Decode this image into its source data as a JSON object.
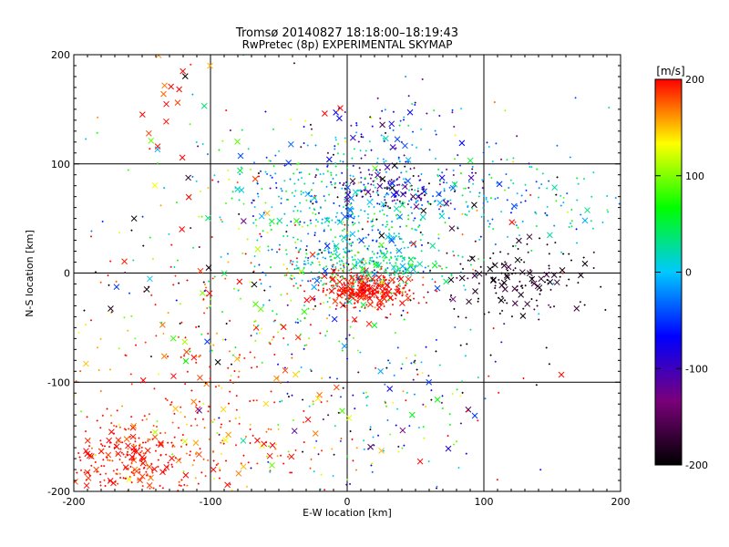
{
  "chart_data": {
    "type": "scatter",
    "title": "Tromsø 20140827 18:18:00–18:19:43",
    "subtitle": "RwPretec (8p) EXPERIMENTAL SKYMAP",
    "xlabel": "E-W location [km]",
    "ylabel": "N-S location [km]",
    "xlim": [
      -200,
      200
    ],
    "ylim": [
      -200,
      200
    ],
    "x_ticks": [
      -200,
      -100,
      0,
      100,
      200
    ],
    "y_ticks": [
      -200,
      -100,
      0,
      100,
      200
    ],
    "grid": true,
    "colorbar": {
      "unit": "[m/s]",
      "range": [
        -200,
        200
      ],
      "ticks": [
        200,
        100,
        0,
        -100,
        -200
      ],
      "colormap": [
        "#000000",
        "#7a007a",
        "#0000ff",
        "#00c8ff",
        "#00ff00",
        "#ffff00",
        "#ff0000"
      ]
    },
    "clusters": [
      {
        "cx": -160,
        "cy": -170,
        "sx": 25,
        "sy": 15,
        "n": 220,
        "v": 195,
        "vs": 15,
        "cross": 0.25
      },
      {
        "cx": -120,
        "cy": -145,
        "sx": 40,
        "sy": 35,
        "n": 140,
        "v": 185,
        "vs": 25,
        "cross": 0.2
      },
      {
        "cx": -60,
        "cy": -165,
        "sx": 35,
        "sy": 25,
        "n": 90,
        "v": 170,
        "vs": 50,
        "cross": 0.2
      },
      {
        "cx": -115,
        "cy": -60,
        "sx": 50,
        "sy": 45,
        "n": 90,
        "v": 175,
        "vs": 40,
        "cross": 0.1
      },
      {
        "cx": -55,
        "cy": -40,
        "sx": 35,
        "sy": 35,
        "n": 110,
        "v": 120,
        "vs": 100,
        "cross": 0.15
      },
      {
        "cx": 15,
        "cy": -15,
        "sx": 18,
        "sy": 9,
        "n": 380,
        "v": 200,
        "vs": 10,
        "cross": 0.15
      },
      {
        "cx": 5,
        "cy": 45,
        "sx": 35,
        "sy": 30,
        "n": 420,
        "v": 10,
        "vs": 40,
        "cross": 0.12
      },
      {
        "cx": 15,
        "cy": 5,
        "sx": 30,
        "sy": 10,
        "n": 220,
        "v": 30,
        "vs": 35,
        "cross": 0.1
      },
      {
        "cx": 35,
        "cy": 80,
        "sx": 30,
        "sy": 12,
        "n": 160,
        "v": -120,
        "vs": 70,
        "cross": 0.2
      },
      {
        "cx": 120,
        "cy": 70,
        "sx": 45,
        "sy": 20,
        "n": 150,
        "v": 0,
        "vs": 40,
        "cross": 0.05
      },
      {
        "cx": 125,
        "cy": -5,
        "sx": 30,
        "sy": 18,
        "n": 140,
        "v": -185,
        "vs": 15,
        "cross": 0.3
      },
      {
        "cx": -35,
        "cy": 85,
        "sx": 40,
        "sy": 25,
        "n": 120,
        "v": 30,
        "vs": 70,
        "cross": 0.15
      },
      {
        "cx": 30,
        "cy": 130,
        "sx": 30,
        "sy": 15,
        "n": 60,
        "v": -80,
        "vs": 60,
        "cross": 0.1
      },
      {
        "cx": 30,
        "cy": -120,
        "sx": 40,
        "sy": 40,
        "n": 120,
        "v": -10,
        "vs": 100,
        "cross": 0.15
      },
      {
        "cx": -150,
        "cy": 30,
        "sx": 45,
        "sy": 60,
        "n": 50,
        "v": 0,
        "vs": 200,
        "cross": 0.3
      },
      {
        "cx": -125,
        "cy": 170,
        "sx": 15,
        "sy": 25,
        "n": 18,
        "v": 190,
        "vs": 30,
        "cross": 0.7
      },
      {
        "cx": 0,
        "cy": 0,
        "sx": 90,
        "sy": 90,
        "n": 250,
        "v": 0,
        "vs": 200,
        "cross": 0.12
      }
    ]
  }
}
